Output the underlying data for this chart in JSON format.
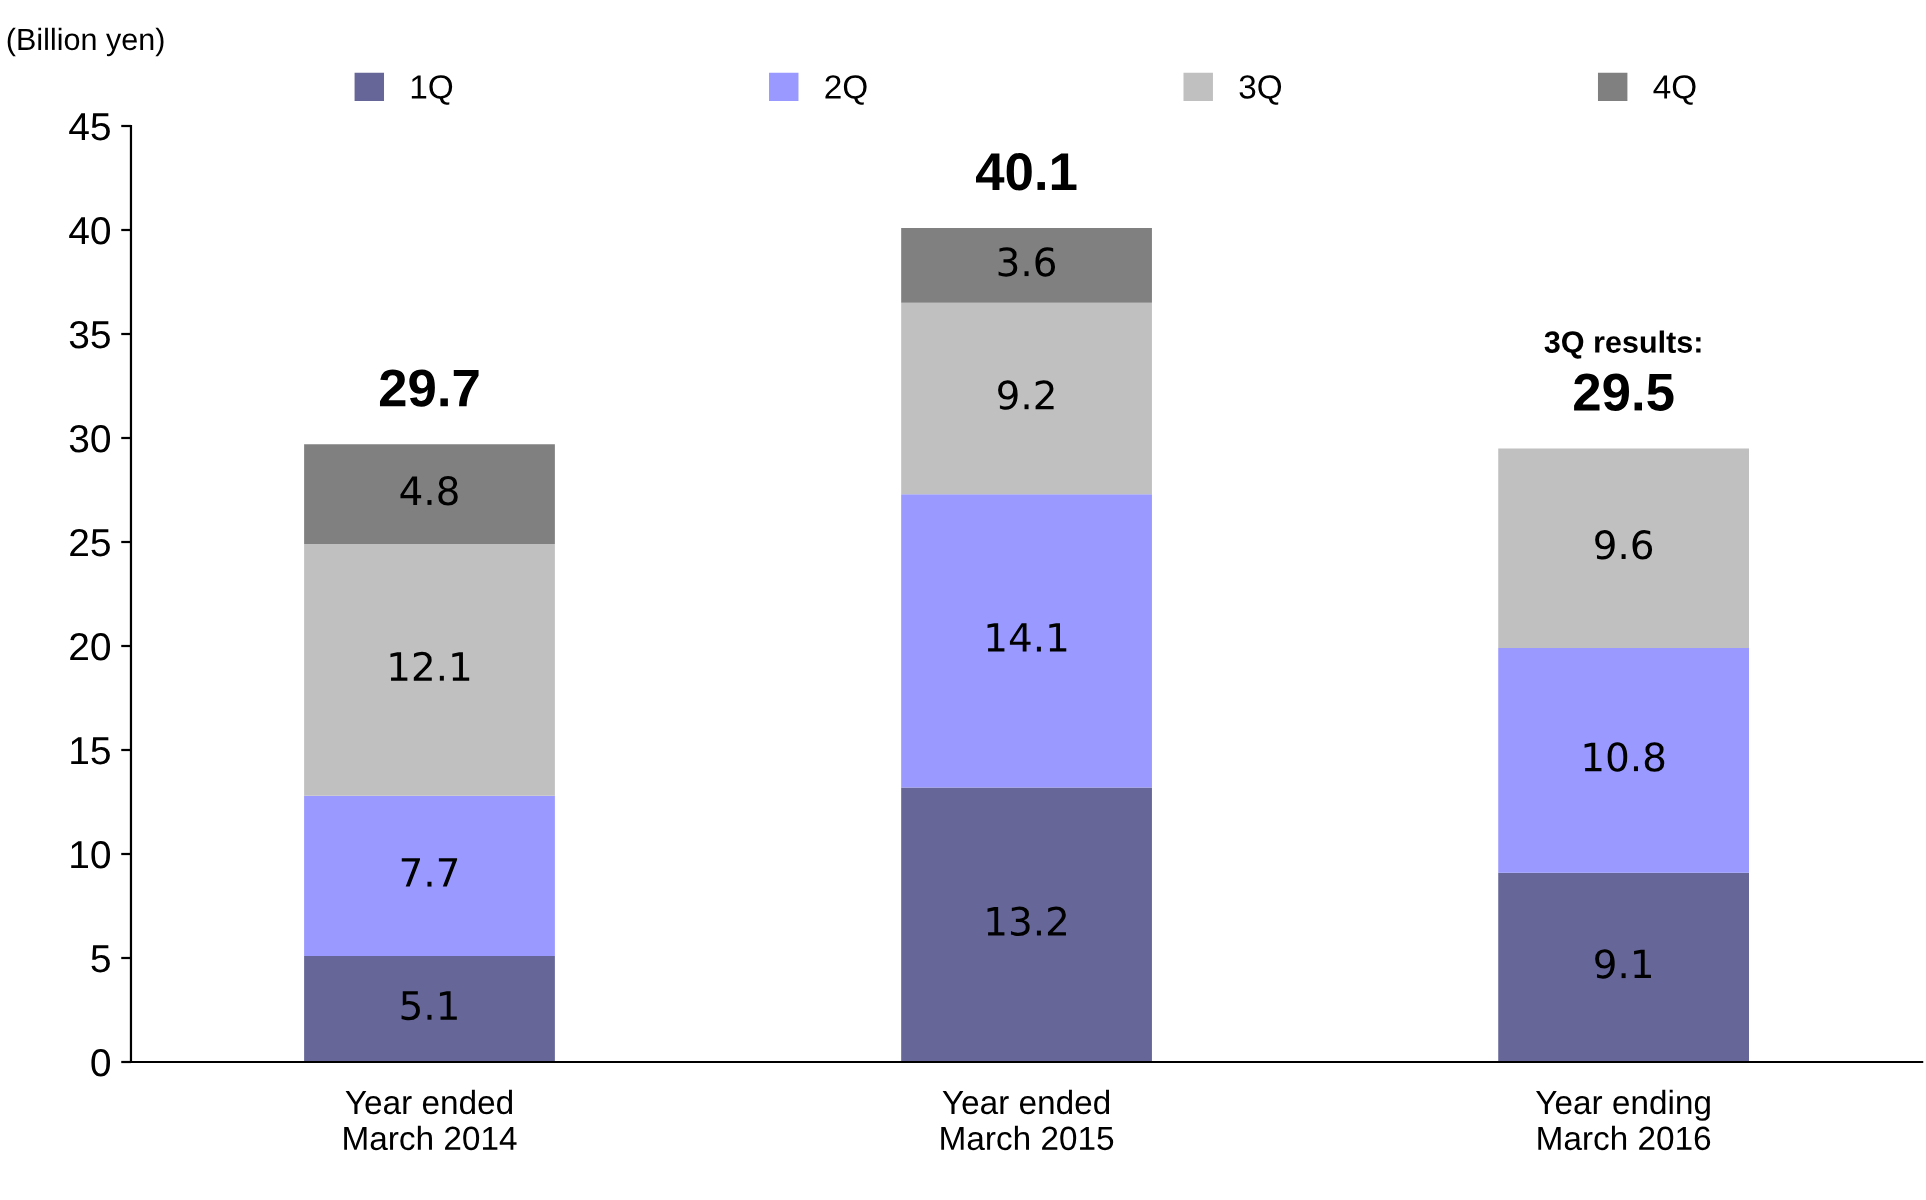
{
  "chart_data": {
    "type": "bar",
    "stacked": true,
    "ylabel": "(Billion yen)",
    "categories": [
      "Year ended\nMarch 2014",
      "Year ended\nMarch 2015",
      "Year ending\nMarch 2016"
    ],
    "series": [
      {
        "name": "1Q",
        "color": "#666699",
        "values": [
          5.1,
          13.2,
          9.1
        ]
      },
      {
        "name": "2Q",
        "color": "#9999ff",
        "values": [
          7.7,
          14.1,
          10.8
        ]
      },
      {
        "name": "3Q",
        "color": "#c0c0c0",
        "values": [
          12.1,
          9.2,
          9.6
        ]
      },
      {
        "name": "4Q",
        "color": "#808080",
        "values": [
          4.8,
          3.6,
          null
        ]
      }
    ],
    "totals": [
      "29.7",
      "40.1",
      "29.5"
    ],
    "annotations": [
      "3Q results:"
    ],
    "data_labels": true,
    "ylim": [
      0,
      45
    ],
    "yticks": [
      0,
      5,
      10,
      15,
      20,
      25,
      30,
      35,
      40,
      45
    ],
    "grid": false,
    "legend": "top"
  }
}
